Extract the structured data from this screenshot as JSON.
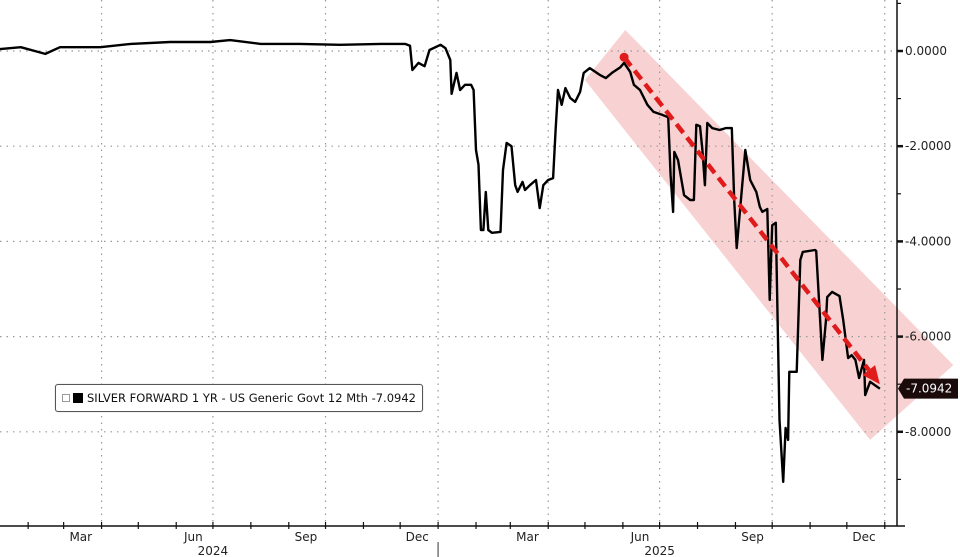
{
  "chart_data": {
    "type": "line",
    "title": "",
    "xlabel": "",
    "ylabel": "",
    "xlim": [
      "2024-01-09",
      "2026-01-11"
    ],
    "ylim": [
      -10,
      1.07
    ],
    "y_axis_position": "right",
    "y_ticks": [
      0,
      -2,
      -4,
      -6,
      -8
    ],
    "y_tick_labels": [
      "0.0000",
      "-2.0000",
      "-4.0000",
      "-6.0000",
      "-8.0000"
    ],
    "x_month_labels": [
      {
        "date": "2024-03-15",
        "label": "Mar"
      },
      {
        "date": "2024-06-15",
        "label": "Jun"
      },
      {
        "date": "2024-09-15",
        "label": "Sep"
      },
      {
        "date": "2024-12-15",
        "label": "Dec"
      },
      {
        "date": "2025-03-15",
        "label": "Mar"
      },
      {
        "date": "2025-06-15",
        "label": "Jun"
      },
      {
        "date": "2025-09-15",
        "label": "Sep"
      },
      {
        "date": "2025-12-15",
        "label": "Dec"
      }
    ],
    "x_year_labels": [
      {
        "date": "2024-07-01",
        "label": "2024"
      },
      {
        "date": "2025-07-01",
        "label": "2025"
      }
    ],
    "grid": true,
    "legend_position": "bottom-left",
    "series": [
      {
        "name": "SILVER FORWARD 1 YR - US Generic Govt 12 Mth",
        "last_value_label": "-7.0942",
        "color": "#000000",
        "points": [
          [
            "2024-01-09",
            0.04
          ],
          [
            "2024-01-26",
            0.08
          ],
          [
            "2024-02-15",
            -0.06
          ],
          [
            "2024-02-27",
            0.08
          ],
          [
            "2024-03-31",
            0.08
          ],
          [
            "2024-04-25",
            0.15
          ],
          [
            "2024-05-27",
            0.19
          ],
          [
            "2024-06-29",
            0.19
          ],
          [
            "2024-07-15",
            0.23
          ],
          [
            "2024-08-09",
            0.15
          ],
          [
            "2024-09-10",
            0.15
          ],
          [
            "2024-10-13",
            0.13
          ],
          [
            "2024-11-15",
            0.15
          ],
          [
            "2024-12-05",
            0.15
          ],
          [
            "2024-12-09",
            0.11
          ],
          [
            "2024-12-11",
            -0.4
          ],
          [
            "2024-12-16",
            -0.25
          ],
          [
            "2024-12-21",
            -0.32
          ],
          [
            "2024-12-25",
            0.02
          ],
          [
            "2025-01-03",
            0.13
          ],
          [
            "2025-01-07",
            0.06
          ],
          [
            "2025-01-11",
            -0.19
          ],
          [
            "2025-01-12",
            -0.9
          ],
          [
            "2025-01-16",
            -0.46
          ],
          [
            "2025-01-19",
            -0.82
          ],
          [
            "2025-01-23",
            -0.71
          ],
          [
            "2025-01-28",
            -0.71
          ],
          [
            "2025-01-30",
            -0.82
          ],
          [
            "2025-02-01",
            -2.08
          ],
          [
            "2025-02-03",
            -2.39
          ],
          [
            "2025-02-05",
            -3.76
          ],
          [
            "2025-02-07",
            -3.76
          ],
          [
            "2025-02-09",
            -2.96
          ],
          [
            "2025-02-11",
            -3.76
          ],
          [
            "2025-02-14",
            -3.82
          ],
          [
            "2025-02-21",
            -3.8
          ],
          [
            "2025-02-23",
            -2.5
          ],
          [
            "2025-02-26",
            -1.93
          ],
          [
            "2025-03-02",
            -2.0
          ],
          [
            "2025-03-05",
            -2.82
          ],
          [
            "2025-03-07",
            -2.96
          ],
          [
            "2025-03-11",
            -2.75
          ],
          [
            "2025-03-13",
            -2.92
          ],
          [
            "2025-03-17",
            -2.82
          ],
          [
            "2025-03-22",
            -2.71
          ],
          [
            "2025-03-25",
            -3.3
          ],
          [
            "2025-03-28",
            -2.82
          ],
          [
            "2025-04-01",
            -2.71
          ],
          [
            "2025-04-05",
            -2.67
          ],
          [
            "2025-04-07",
            -1.66
          ],
          [
            "2025-04-09",
            -0.82
          ],
          [
            "2025-04-12",
            -1.13
          ],
          [
            "2025-04-15",
            -0.78
          ],
          [
            "2025-04-19",
            -0.99
          ],
          [
            "2025-04-23",
            -1.07
          ],
          [
            "2025-04-27",
            -0.86
          ],
          [
            "2025-04-30",
            -0.46
          ],
          [
            "2025-05-05",
            -0.36
          ],
          [
            "2025-05-13",
            -0.5
          ],
          [
            "2025-05-18",
            -0.57
          ],
          [
            "2025-05-23",
            -0.46
          ],
          [
            "2025-05-30",
            -0.34
          ],
          [
            "2025-06-02",
            -0.25
          ],
          [
            "2025-06-07",
            -0.44
          ],
          [
            "2025-06-10",
            -0.71
          ],
          [
            "2025-06-15",
            -0.82
          ],
          [
            "2025-06-21",
            -1.13
          ],
          [
            "2025-06-26",
            -1.28
          ],
          [
            "2025-07-03",
            -1.34
          ],
          [
            "2025-07-08",
            -1.39
          ],
          [
            "2025-07-10",
            -2.61
          ],
          [
            "2025-07-12",
            -3.38
          ],
          [
            "2025-07-13",
            -2.12
          ],
          [
            "2025-07-16",
            -2.29
          ],
          [
            "2025-07-21",
            -3.03
          ],
          [
            "2025-07-26",
            -3.13
          ],
          [
            "2025-07-29",
            -3.13
          ],
          [
            "2025-07-31",
            -1.55
          ],
          [
            "2025-08-03",
            -1.58
          ],
          [
            "2025-08-05",
            -2.08
          ],
          [
            "2025-08-07",
            -2.82
          ],
          [
            "2025-08-09",
            -1.51
          ],
          [
            "2025-08-13",
            -1.62
          ],
          [
            "2025-08-19",
            -1.66
          ],
          [
            "2025-08-24",
            -1.62
          ],
          [
            "2025-08-29",
            -1.62
          ],
          [
            "2025-08-31",
            -3.13
          ],
          [
            "2025-09-02",
            -4.14
          ],
          [
            "2025-09-09",
            -2.08
          ],
          [
            "2025-09-13",
            -2.71
          ],
          [
            "2025-09-18",
            -2.96
          ],
          [
            "2025-09-21",
            -3.28
          ],
          [
            "2025-09-23",
            -3.38
          ],
          [
            "2025-09-27",
            -3.32
          ],
          [
            "2025-09-29",
            -5.23
          ],
          [
            "2025-10-01",
            -3.66
          ],
          [
            "2025-10-04",
            -3.61
          ],
          [
            "2025-10-07",
            -7.75
          ],
          [
            "2025-10-10",
            -9.05
          ],
          [
            "2025-10-12",
            -7.92
          ],
          [
            "2025-10-14",
            -8.17
          ],
          [
            "2025-10-15",
            -6.74
          ],
          [
            "2025-10-21",
            -6.74
          ],
          [
            "2025-10-24",
            -4.39
          ],
          [
            "2025-10-26",
            -4.22
          ],
          [
            "2025-11-05",
            -4.18
          ],
          [
            "2025-11-06",
            -4.2
          ],
          [
            "2025-11-11",
            -6.49
          ],
          [
            "2025-11-14",
            -5.65
          ],
          [
            "2025-11-15",
            -5.17
          ],
          [
            "2025-11-19",
            -5.06
          ],
          [
            "2025-11-25",
            -5.15
          ],
          [
            "2025-11-28",
            -5.65
          ],
          [
            "2025-12-02",
            -6.45
          ],
          [
            "2025-12-05",
            -6.39
          ],
          [
            "2025-12-08",
            -6.49
          ],
          [
            "2025-12-11",
            -6.87
          ],
          [
            "2025-12-15",
            -6.49
          ],
          [
            "2025-12-16",
            -7.23
          ],
          [
            "2025-12-20",
            -6.95
          ],
          [
            "2025-12-25",
            -7.04
          ],
          [
            "2025-12-28",
            -7.0942
          ]
        ]
      }
    ],
    "annotations": {
      "trend_arrow": {
        "color": "#e01b1b",
        "style": "dashed",
        "from": [
          "2025-06-02",
          -0.13
        ],
        "to": [
          "2025-12-28",
          -7.0
        ]
      },
      "channel_band": {
        "color": "#f7caca",
        "corners": [
          [
            "2025-05-01",
            -0.61
          ],
          [
            "2025-06-03",
            0.44
          ],
          [
            "2026-02-26",
            -6.6
          ],
          [
            "2025-12-20",
            -8.17
          ]
        ]
      }
    }
  },
  "legend": {
    "label": "SILVER FORWARD 1 YR - US Generic Govt 12 Mth",
    "value": "-7.0942"
  }
}
